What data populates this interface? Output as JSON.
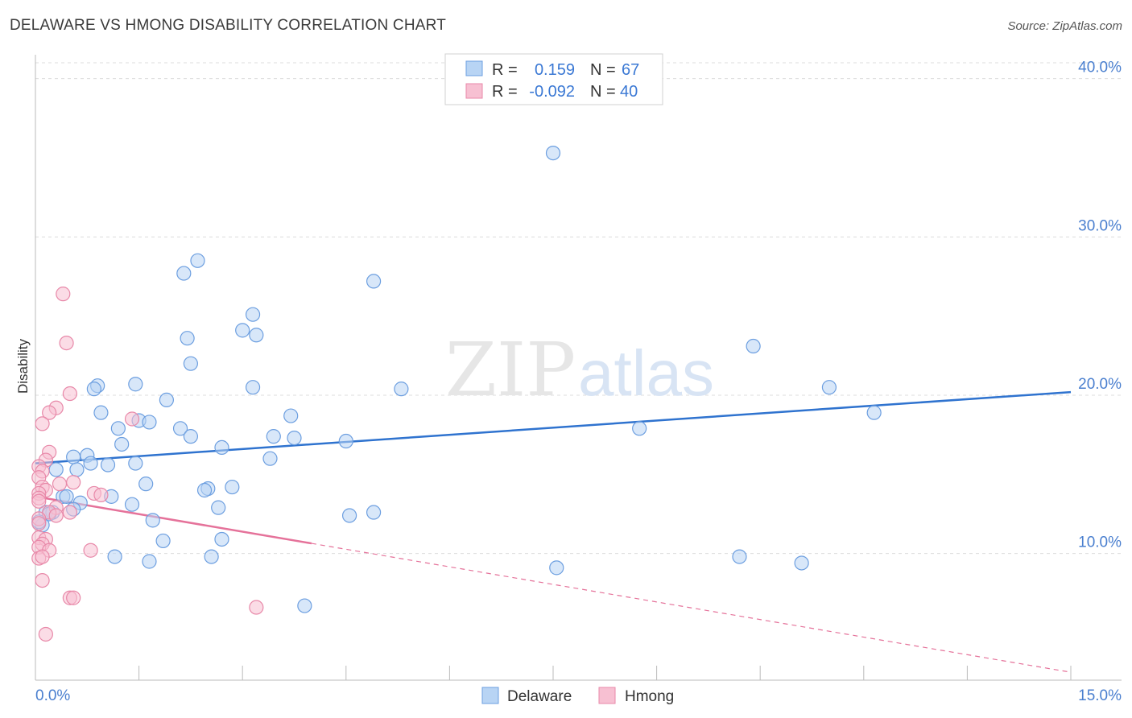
{
  "title": "DELAWARE VS HMONG DISABILITY CORRELATION CHART",
  "source": "Source: ZipAtlas.com",
  "watermark": {
    "zip": "ZIP",
    "atlas": "atlas"
  },
  "colors": {
    "delaware_fill": "#b8d4f4",
    "delaware_stroke": "#6d9fe0",
    "delaware_line": "#2f73cf",
    "hmong_fill": "#f7c0d2",
    "hmong_stroke": "#e889a9",
    "hmong_line": "#e5729a",
    "grid": "#dcdcdc",
    "axis": "#bbbbbb",
    "tick_text": "#4a7fcf"
  },
  "legend": {
    "rows": [
      {
        "series": "Delaware",
        "r_label": "R =",
        "r_value": "0.159",
        "n_label": "N =",
        "n_value": "67"
      },
      {
        "series": "Hmong",
        "r_label": "R =",
        "r_value": "-0.092",
        "n_label": "N =",
        "n_value": "40"
      }
    ]
  },
  "chart_data": {
    "type": "scatter",
    "title": "DELAWARE VS HMONG DISABILITY CORRELATION CHART",
    "xlabel": "",
    "ylabel": "Disability",
    "xlim": [
      0,
      15
    ],
    "ylim": [
      2,
      41
    ],
    "x_tick_labels": [
      "0.0%",
      "15.0%"
    ],
    "y_ticks": [
      10,
      20,
      30,
      40
    ],
    "y_tick_labels": [
      "10.0%",
      "20.0%",
      "30.0%",
      "40.0%"
    ],
    "grid": true,
    "legend_position": "bottom-center",
    "series": [
      {
        "name": "Delaware",
        "points": [
          [
            7.5,
            35.3
          ],
          [
            2.35,
            28.5
          ],
          [
            2.15,
            27.7
          ],
          [
            4.9,
            27.2
          ],
          [
            3.15,
            25.1
          ],
          [
            3.0,
            24.1
          ],
          [
            3.2,
            23.8
          ],
          [
            2.2,
            23.6
          ],
          [
            10.4,
            23.1
          ],
          [
            2.25,
            22.0
          ],
          [
            0.9,
            20.6
          ],
          [
            1.45,
            20.7
          ],
          [
            3.15,
            20.5
          ],
          [
            5.3,
            20.4
          ],
          [
            11.5,
            20.5
          ],
          [
            0.85,
            20.4
          ],
          [
            1.9,
            19.7
          ],
          [
            0.95,
            18.9
          ],
          [
            12.15,
            18.9
          ],
          [
            3.7,
            18.7
          ],
          [
            1.5,
            18.4
          ],
          [
            1.65,
            18.3
          ],
          [
            1.2,
            17.9
          ],
          [
            2.1,
            17.9
          ],
          [
            8.75,
            17.9
          ],
          [
            2.25,
            17.4
          ],
          [
            3.45,
            17.4
          ],
          [
            3.75,
            17.3
          ],
          [
            4.5,
            17.1
          ],
          [
            1.25,
            16.9
          ],
          [
            2.7,
            16.7
          ],
          [
            0.55,
            16.1
          ],
          [
            0.75,
            16.2
          ],
          [
            3.4,
            16.0
          ],
          [
            0.8,
            15.7
          ],
          [
            1.05,
            15.6
          ],
          [
            1.45,
            15.7
          ],
          [
            0.3,
            15.3
          ],
          [
            0.6,
            15.3
          ],
          [
            1.6,
            14.4
          ],
          [
            2.5,
            14.1
          ],
          [
            2.85,
            14.2
          ],
          [
            2.45,
            14.0
          ],
          [
            0.4,
            13.6
          ],
          [
            0.45,
            13.6
          ],
          [
            1.1,
            13.6
          ],
          [
            0.65,
            13.2
          ],
          [
            1.4,
            13.1
          ],
          [
            2.65,
            12.9
          ],
          [
            0.55,
            12.8
          ],
          [
            0.15,
            12.6
          ],
          [
            0.25,
            12.6
          ],
          [
            0.2,
            12.5
          ],
          [
            4.9,
            12.6
          ],
          [
            4.55,
            12.4
          ],
          [
            1.7,
            12.1
          ],
          [
            0.1,
            11.8
          ],
          [
            2.7,
            10.9
          ],
          [
            1.85,
            10.8
          ],
          [
            1.15,
            9.8
          ],
          [
            2.55,
            9.8
          ],
          [
            10.2,
            9.8
          ],
          [
            1.65,
            9.5
          ],
          [
            11.1,
            9.4
          ],
          [
            7.55,
            9.1
          ],
          [
            3.9,
            6.7
          ],
          [
            0.05,
            12.0
          ]
        ],
        "trend": {
          "x": [
            0.0,
            15.0
          ],
          "y": [
            15.7,
            20.2
          ],
          "style": "solid"
        }
      },
      {
        "name": "Hmong",
        "points": [
          [
            0.4,
            26.4
          ],
          [
            0.45,
            23.3
          ],
          [
            0.5,
            20.1
          ],
          [
            0.3,
            19.2
          ],
          [
            0.2,
            18.9
          ],
          [
            1.4,
            18.5
          ],
          [
            0.1,
            18.2
          ],
          [
            0.2,
            16.4
          ],
          [
            0.15,
            15.9
          ],
          [
            0.05,
            15.5
          ],
          [
            0.1,
            15.2
          ],
          [
            0.05,
            14.8
          ],
          [
            0.35,
            14.4
          ],
          [
            0.55,
            14.5
          ],
          [
            0.1,
            14.2
          ],
          [
            0.15,
            14.0
          ],
          [
            0.05,
            13.8
          ],
          [
            0.85,
            13.8
          ],
          [
            0.95,
            13.7
          ],
          [
            0.05,
            13.5
          ],
          [
            0.05,
            13.3
          ],
          [
            0.3,
            12.9
          ],
          [
            0.2,
            12.6
          ],
          [
            0.5,
            12.6
          ],
          [
            0.3,
            12.4
          ],
          [
            0.05,
            12.2
          ],
          [
            0.05,
            11.9
          ],
          [
            0.05,
            11.0
          ],
          [
            0.15,
            10.9
          ],
          [
            0.1,
            10.6
          ],
          [
            0.05,
            10.4
          ],
          [
            0.2,
            10.2
          ],
          [
            0.8,
            10.2
          ],
          [
            0.05,
            9.7
          ],
          [
            0.1,
            9.8
          ],
          [
            0.1,
            8.3
          ],
          [
            0.5,
            7.2
          ],
          [
            0.55,
            7.2
          ],
          [
            3.2,
            6.6
          ],
          [
            0.15,
            4.9
          ]
        ],
        "trend": {
          "x": [
            0.0,
            15.0
          ],
          "y": [
            13.6,
            2.5
          ],
          "solid_until_x": 4.0,
          "style": "solid-then-dashed"
        }
      }
    ]
  }
}
